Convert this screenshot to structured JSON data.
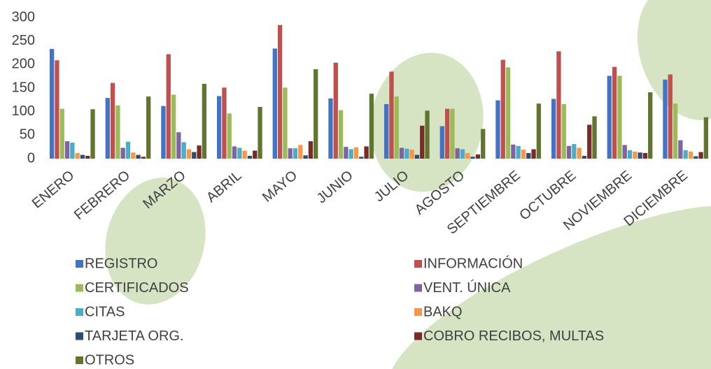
{
  "chart_data": {
    "type": "bar",
    "categories": [
      "ENERO",
      "FEBRERO",
      "MARZO",
      "ABRIL",
      "MAYO",
      "JUNIO",
      "JULIO",
      "AGOSTO",
      "SEPTIEMBRE",
      "OCTUBRE",
      "NOVIEMBRE",
      "DICIEMBRE"
    ],
    "series": [
      {
        "name": "REGISTRO",
        "color": "#4472c4",
        "values": [
          233,
          129,
          112,
          133,
          234,
          128,
          116,
          69,
          124,
          127,
          176,
          168
        ]
      },
      {
        "name": "INFORMACIÓN",
        "color": "#c0504d",
        "values": [
          209,
          161,
          222,
          151,
          284,
          204,
          185,
          106,
          210,
          228,
          195,
          179
        ]
      },
      {
        "name": "CERTIFICADOS",
        "color": "#9bbb59",
        "values": [
          106,
          113,
          136,
          96,
          151,
          103,
          132,
          106,
          194,
          116,
          176,
          117
        ]
      },
      {
        "name": "VENT. ÚNICA",
        "color": "#8064a2",
        "values": [
          37,
          23,
          56,
          26,
          22,
          25,
          23,
          22,
          30,
          27,
          29,
          39
        ]
      },
      {
        "name": "CITAS",
        "color": "#4bacc6",
        "values": [
          34,
          36,
          35,
          23,
          22,
          20,
          21,
          20,
          27,
          31,
          18,
          18
        ]
      },
      {
        "name": "BAKQ",
        "color": "#f79646",
        "values": [
          12,
          13,
          20,
          17,
          29,
          24,
          19,
          12,
          19,
          23,
          15,
          15
        ]
      },
      {
        "name": "TARJETA ORG.",
        "color": "#2c4d75",
        "values": [
          8,
          8,
          14,
          6,
          7,
          4,
          8,
          4,
          12,
          6,
          13,
          5
        ]
      },
      {
        "name": "COBRO RECIBOS, MULTAS",
        "color": "#772c2a",
        "values": [
          6,
          4,
          28,
          17,
          37,
          26,
          70,
          9,
          20,
          72,
          12,
          14
        ]
      },
      {
        "name": "OTROS",
        "color": "#5f7530",
        "values": [
          105,
          132,
          159,
          110,
          190,
          138,
          102,
          63,
          117,
          90,
          141,
          88
        ]
      }
    ],
    "ylim": [
      0,
      300
    ],
    "yticks": [
      0,
      50,
      100,
      150,
      200,
      250,
      300
    ]
  }
}
